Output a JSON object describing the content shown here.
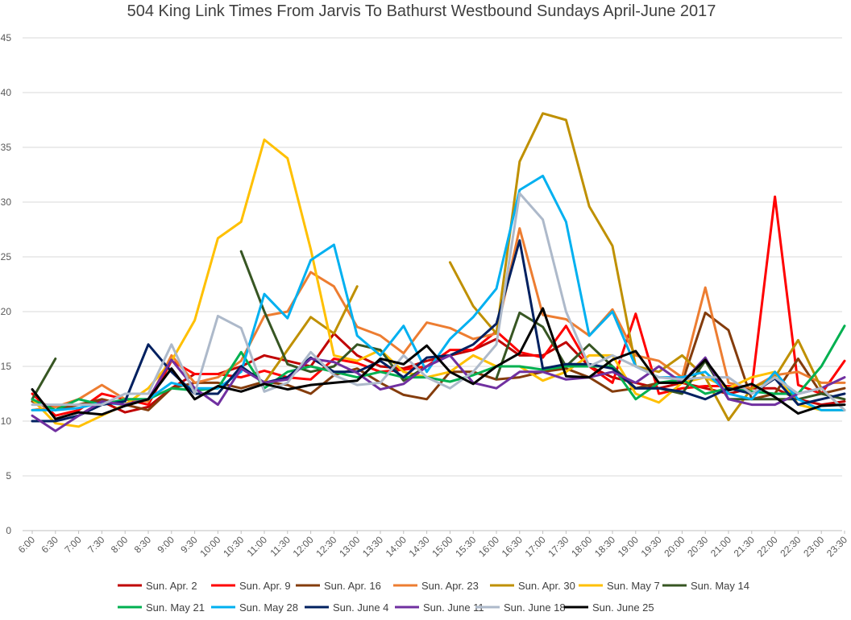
{
  "chart_data": {
    "type": "line",
    "title": "504 King Link Times From Jarvis To Bathurst Westbound Sundays April-June 2017",
    "xlabel": "",
    "ylabel": "",
    "ylim": [
      0,
      45
    ],
    "yticks": [
      0,
      5,
      10,
      15,
      20,
      25,
      30,
      35,
      40,
      45
    ],
    "grid": true,
    "legend_position": "bottom",
    "categories": [
      "6:00",
      "6:30",
      "7:00",
      "7:30",
      "8:00",
      "8:30",
      "9:00",
      "9:30",
      "10:00",
      "10:30",
      "11:00",
      "11:30",
      "12:00",
      "12:30",
      "13:00",
      "13:30",
      "14:00",
      "14:30",
      "15:00",
      "15:30",
      "16:00",
      "16:30",
      "17:00",
      "17:30",
      "18:00",
      "18:30",
      "19:00",
      "19:30",
      "20:00",
      "20:30",
      "21:00",
      "21:30",
      "22:00",
      "22:30",
      "23:00",
      "23:30"
    ],
    "series": [
      {
        "name": "Sun. Apr. 2",
        "color": "#c00000",
        "values": [
          11.8,
          11.3,
          11.5,
          11.8,
          10.8,
          11.3,
          13.0,
          14.3,
          14.3,
          15.0,
          16.0,
          15.5,
          15.0,
          18.0,
          16.0,
          15.0,
          14.8,
          15.5,
          16.0,
          16.5,
          17.5,
          16.0,
          16.0,
          17.2,
          15.0,
          14.0,
          13.5,
          13.0,
          13.5,
          13.0,
          12.5,
          13.0,
          13.0,
          12.0,
          11.5,
          11.8
        ]
      },
      {
        "name": "Sun. Apr. 9",
        "color": "#ff0000",
        "values": [
          12.5,
          10.5,
          11.0,
          12.5,
          12.0,
          11.5,
          15.5,
          14.3,
          14.3,
          14.0,
          14.6,
          14.0,
          13.8,
          15.7,
          15.3,
          14.5,
          14.7,
          15.0,
          16.5,
          16.5,
          18.2,
          16.3,
          15.8,
          18.7,
          15.0,
          13.5,
          19.8,
          12.5,
          13.0,
          13.2,
          13.2,
          13.0,
          30.5,
          13.3,
          12.5,
          15.5
        ]
      },
      {
        "name": "Sun. Apr. 16",
        "color": "#843c0c",
        "values": [
          11.8,
          11.0,
          11.5,
          12.0,
          11.5,
          11.0,
          13.0,
          13.5,
          13.5,
          13.0,
          13.6,
          13.3,
          12.5,
          14.2,
          14.8,
          13.5,
          12.4,
          12.0,
          14.5,
          14.5,
          13.8,
          14.0,
          14.5,
          14.8,
          14.0,
          12.7,
          13.0,
          13.5,
          13.5,
          19.9,
          18.3,
          12.0,
          12.5,
          15.7,
          12.5,
          13.0
        ]
      },
      {
        "name": "Sun. Apr. 23",
        "color": "#ed7d31",
        "values": [
          11.0,
          11.3,
          12.0,
          13.3,
          12.0,
          11.8,
          16.0,
          13.5,
          14.0,
          15.5,
          19.6,
          20.0,
          23.6,
          22.3,
          18.6,
          17.8,
          16.2,
          19.0,
          18.5,
          17.5,
          18.0,
          27.6,
          19.7,
          19.3,
          17.8,
          20.2,
          16.0,
          15.5,
          14.0,
          22.2,
          13.5,
          13.0,
          14.2,
          14.5,
          13.5,
          13.5
        ]
      },
      {
        "name": "Sun. Apr. 30",
        "color": "#bf9000",
        "values": [
          null,
          null,
          null,
          null,
          null,
          null,
          null,
          null,
          null,
          null,
          13.5,
          16.5,
          19.5,
          18.0,
          22.3,
          null,
          null,
          null,
          24.5,
          20.5,
          18.0,
          33.7,
          38.1,
          37.5,
          29.6,
          26.0,
          15.0,
          14.5,
          16.0,
          14.0,
          10.1,
          13.0,
          14.0,
          17.4,
          13.0,
          11.0
        ]
      },
      {
        "name": "Sun. May 7",
        "color": "#ffc000",
        "values": [
          12.0,
          9.8,
          9.5,
          10.5,
          11.5,
          13.0,
          15.5,
          19.2,
          26.7,
          28.2,
          35.7,
          34.0,
          25.7,
          16.0,
          15.5,
          16.5,
          14.5,
          14.0,
          14.5,
          16.0,
          15.0,
          15.0,
          13.7,
          14.5,
          16.0,
          16.0,
          12.5,
          11.7,
          13.5,
          14.0,
          13.0,
          14.0,
          14.5,
          11.5,
          11.0,
          11.0
        ]
      },
      {
        "name": "Sun. May 14",
        "color": "#375623",
        "values": [
          12.0,
          15.7,
          null,
          null,
          null,
          null,
          null,
          null,
          null,
          25.5,
          20.0,
          15.2,
          14.5,
          15.0,
          17.0,
          16.5,
          13.7,
          15.0,
          null,
          null,
          13.9,
          19.9,
          18.6,
          15.0,
          17.0,
          15.0,
          13.0,
          13.0,
          12.5,
          15.5,
          12.0,
          12.0,
          12.0,
          12.0,
          12.5,
          12.0
        ]
      },
      {
        "name": "Sun. May 21",
        "color": "#00b050",
        "values": [
          12.0,
          11.0,
          12.0,
          11.5,
          12.0,
          12.0,
          13.0,
          12.8,
          13.0,
          16.3,
          13.0,
          14.5,
          15.0,
          14.5,
          14.0,
          14.5,
          14.0,
          14.0,
          13.6,
          14.2,
          15.0,
          15.0,
          14.7,
          15.0,
          15.0,
          15.0,
          12.0,
          13.5,
          13.8,
          12.5,
          13.0,
          12.7,
          12.5,
          12.5,
          15.0,
          18.7
        ]
      },
      {
        "name": "Sun. May 28",
        "color": "#00b0f0",
        "values": [
          11.0,
          11.0,
          11.2,
          11.7,
          11.5,
          12.0,
          13.5,
          13.0,
          13.0,
          14.5,
          21.6,
          19.4,
          24.7,
          26.1,
          17.8,
          16.0,
          18.7,
          14.5,
          17.5,
          19.5,
          22.1,
          31.1,
          32.4,
          28.2,
          17.8,
          20.0,
          15.0,
          14.0,
          14.0,
          14.5,
          12.5,
          12.0,
          14.5,
          12.0,
          11.0,
          11.0
        ]
      },
      {
        "name": "Sun. June 4",
        "color": "#002060",
        "values": [
          10.0,
          10.0,
          10.5,
          11.5,
          11.8,
          17.0,
          14.5,
          12.5,
          12.5,
          15.0,
          13.5,
          14.0,
          15.8,
          14.5,
          14.5,
          15.5,
          14.0,
          15.8,
          16.0,
          17.0,
          18.9,
          26.5,
          14.8,
          15.2,
          15.2,
          14.8,
          13.0,
          13.0,
          12.7,
          12.0,
          13.0,
          12.5,
          13.9,
          11.5,
          12.0,
          12.5
        ]
      },
      {
        "name": "Sun. June 11",
        "color": "#7030a0",
        "values": [
          10.5,
          9.1,
          10.5,
          11.8,
          11.5,
          12.0,
          15.6,
          13.0,
          11.5,
          14.8,
          13.5,
          13.8,
          15.7,
          15.4,
          14.4,
          12.9,
          13.4,
          15.0,
          16.0,
          13.5,
          13.0,
          14.5,
          14.5,
          13.8,
          14.0,
          14.5,
          13.5,
          15.0,
          13.5,
          15.8,
          12.0,
          11.5,
          11.5,
          12.5,
          13.0,
          14.0
        ]
      },
      {
        "name": "Sun. June 18",
        "color": "#adb9ca",
        "values": [
          11.5,
          11.5,
          11.5,
          11.5,
          12.5,
          12.5,
          17.0,
          12.5,
          19.6,
          18.5,
          12.7,
          13.5,
          16.3,
          14.2,
          13.3,
          13.5,
          16.0,
          14.0,
          13.0,
          14.5,
          17.0,
          30.8,
          28.4,
          20.0,
          15.0,
          16.0,
          15.0,
          14.0,
          13.8,
          14.0,
          14.0,
          12.5,
          14.0,
          12.5,
          13.0,
          11.0
        ]
      },
      {
        "name": "Sun. June 25",
        "color": "#000000",
        "values": [
          12.9,
          10.2,
          10.8,
          10.6,
          11.4,
          12.0,
          14.8,
          12.0,
          13.2,
          12.7,
          13.4,
          12.9,
          13.3,
          13.5,
          13.7,
          15.7,
          15.2,
          16.9,
          14.5,
          13.4,
          15.0,
          16.2,
          20.3,
          14.1,
          14.0,
          15.6,
          16.4,
          13.5,
          13.5,
          15.6,
          12.8,
          13.4,
          12.2,
          10.7,
          11.4,
          11.5
        ]
      }
    ]
  }
}
